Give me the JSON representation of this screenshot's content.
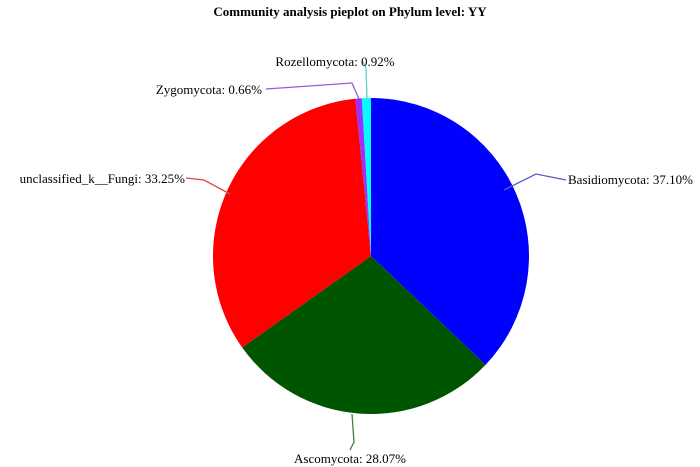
{
  "chart_data": {
    "type": "pie",
    "title": "Community analysis pieplot on Phylum level: YY",
    "slices": [
      {
        "name": "Basidiomycota",
        "value": 37.1,
        "label": "Basidiomycota: 37.10%",
        "color": "#0000ff"
      },
      {
        "name": "Ascomycota",
        "value": 28.07,
        "label": "Ascomycota: 28.07%",
        "color": "#005500"
      },
      {
        "name": "unclassified_k__Fungi",
        "value": 33.25,
        "label": "unclassified_k__Fungi: 33.25%",
        "color": "#ff0000"
      },
      {
        "name": "Zygomycota",
        "value": 0.66,
        "label": "Zygomycota: 0.66%",
        "color": "#9b30ff"
      },
      {
        "name": "Rozellomycota",
        "value": 0.92,
        "label": "Rozellomycota: 0.92%",
        "color": "#00ffff"
      }
    ],
    "leader_colors": [
      "#5a5ac8",
      "#4a7a4a",
      "#d84a4a",
      "#9a5ad0",
      "#5ad0d0"
    ]
  }
}
